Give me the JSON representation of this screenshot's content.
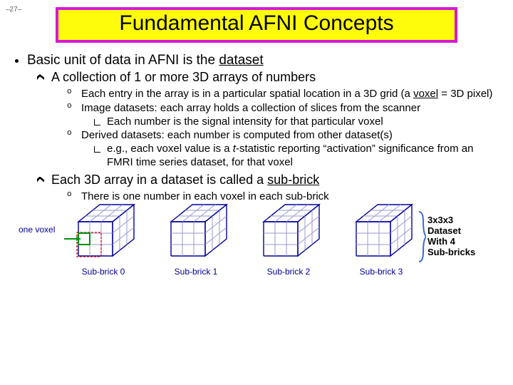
{
  "page": {
    "number": "–27–"
  },
  "title": "Fundamental AFNI Concepts",
  "bullets": {
    "top": "Basic unit of data in AFNI is the ",
    "top_underline": "dataset",
    "l2a": "A collection of 1 or more 3D arrays of numbers",
    "l3a_1": "Each entry in the array is in a particular spatial location in a 3D grid (a ",
    "l3a_voxel": "voxel",
    "l3a_2": " = 3D pixel)",
    "l3b": "Image datasets: each array holds a collection of slices from the scanner",
    "l4a": "Each number is the signal intensity for that particular voxel",
    "l3c": "Derived datasets: each number is computed from other dataset(s)",
    "l4b_1": "e.g., each voxel value is a ",
    "l4b_t": "t",
    "l4b_2": "-statistic reporting “activation” significance from an FMRI time series dataset, for that voxel",
    "l2b_1": "Each 3D array in a dataset is called a ",
    "l2b_sub": "sub-brick",
    "l3d": "There is one number in each voxel in each sub-brick"
  },
  "diagram": {
    "voxel_label": "one voxel",
    "captions": [
      "Sub-brick 0",
      "Sub-brick 1",
      "Sub-brick 2",
      "Sub-brick 3"
    ],
    "side_l1": "3x3x3",
    "side_l2": "Dataset",
    "side_l3": "With 4",
    "side_l4": "Sub-bricks",
    "colors": {
      "cube_stroke": "#000099",
      "grid_stroke": "#9a9ad0",
      "highlight_stroke": "#009010",
      "red_dash": "#dd0000",
      "brace": "#3a6bd6"
    }
  }
}
